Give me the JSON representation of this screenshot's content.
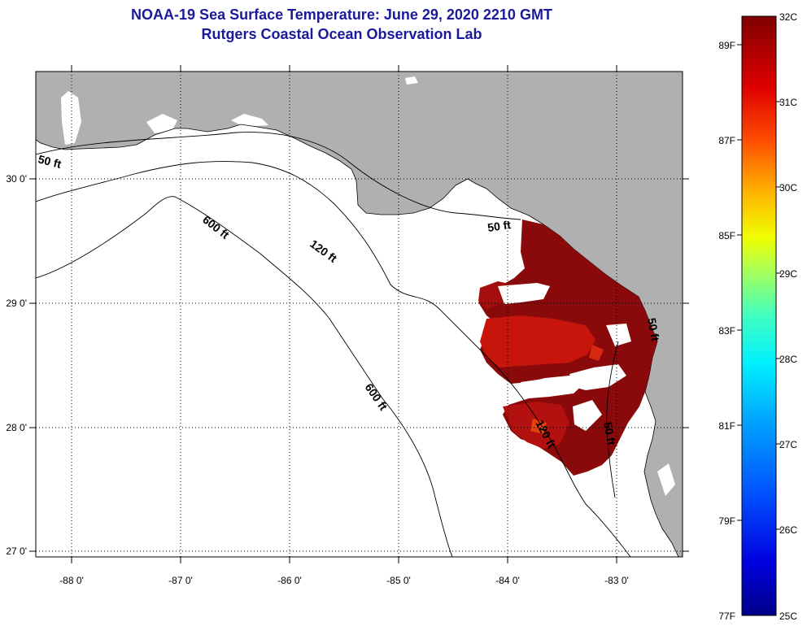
{
  "header": {
    "title_line1": "NOAA-19 Sea Surface Temperature:  June 29, 2020 2210 GMT",
    "title_line2": "Rutgers Coastal Ocean Observation Lab"
  },
  "map": {
    "lat_labels": [
      "30 0'",
      "29 0'",
      "28 0'",
      "27 0'"
    ],
    "lon_labels": [
      "-88 0'",
      "-87 0'",
      "-86 0'",
      "-85 0'",
      "-84 0'",
      "-83 0'"
    ],
    "contour_labels": [
      "50 ft",
      "600 ft",
      "120 ft",
      "50 ft",
      "600 ft",
      "120 ft",
      "50 ft",
      "50 ft"
    ],
    "colors": {
      "land": "#b0b0b0",
      "ocean": "#ffffff",
      "sst_dark": "#7a0008",
      "sst_mid": "#c8150c",
      "sst_warm": "#e8400c"
    }
  },
  "colorbar": {
    "celsius_labels": [
      "32C",
      "31C",
      "30C",
      "29C",
      "28C",
      "27C",
      "26C",
      "25C"
    ],
    "fahrenheit_labels": [
      "89F",
      "87F",
      "85F",
      "83F",
      "81F",
      "79F",
      "77F"
    ],
    "range_c": [
      25,
      32
    ],
    "gradient": [
      "#00008a",
      "#0000e0",
      "#0050ff",
      "#00a0ff",
      "#00f0ff",
      "#40ffc0",
      "#a0ff60",
      "#f0ff00",
      "#ffb000",
      "#ff5000",
      "#e00000",
      "#800000"
    ]
  }
}
